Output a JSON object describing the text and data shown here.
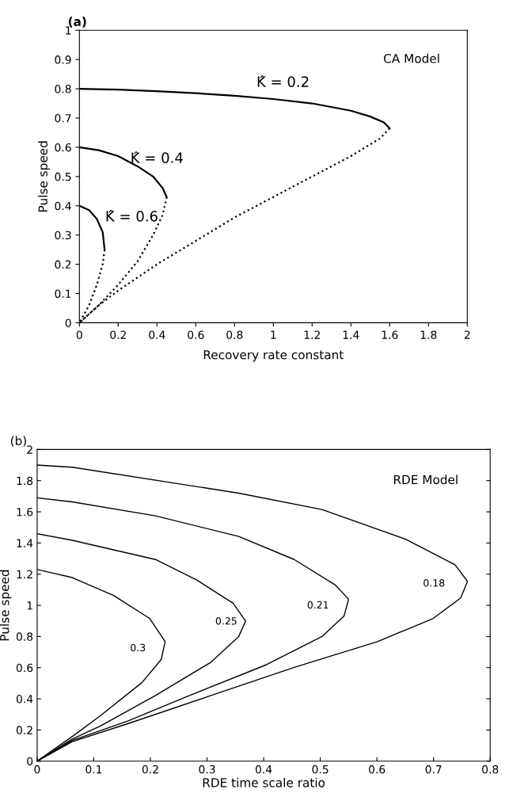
{
  "chart_data": [
    {
      "type": "line",
      "title": "(a)",
      "xlabel": "Recovery rate constant",
      "ylabel": "Pulse speed",
      "xlim": [
        0,
        2
      ],
      "ylim": [
        0,
        1
      ],
      "xticks": [
        0,
        0.2,
        0.4,
        0.6,
        0.8,
        1,
        1.2,
        1.4,
        1.6,
        1.8,
        2
      ],
      "yticks": [
        0,
        0.1,
        0.2,
        0.3,
        0.4,
        0.5,
        0.6,
        0.7,
        0.8,
        0.9,
        1
      ],
      "grid": false,
      "series": [
        {
          "color": "#000000",
          "line_style": "solid",
          "x": [
            0,
            0.2,
            0.4,
            0.6,
            0.8,
            1.0,
            1.2,
            1.4,
            1.5,
            1.57,
            1.6
          ],
          "values": [
            0.8,
            0.797,
            0.792,
            0.785,
            0.776,
            0.765,
            0.75,
            0.725,
            0.705,
            0.685,
            0.665
          ]
        },
        {
          "color": "#000000",
          "line_style": "dotted",
          "x": [
            1.6,
            1.55,
            1.4,
            1.2,
            1.0,
            0.8,
            0.6,
            0.4,
            0.2,
            0.1,
            0
          ],
          "values": [
            0.665,
            0.63,
            0.57,
            0.5,
            0.43,
            0.36,
            0.28,
            0.2,
            0.11,
            0.06,
            0
          ]
        },
        {
          "color": "#000000",
          "line_style": "solid",
          "x": [
            0,
            0.1,
            0.2,
            0.3,
            0.38,
            0.43,
            0.45
          ],
          "values": [
            0.6,
            0.59,
            0.57,
            0.535,
            0.5,
            0.46,
            0.43
          ]
        },
        {
          "color": "#000000",
          "line_style": "dotted",
          "x": [
            0.45,
            0.43,
            0.38,
            0.3,
            0.2,
            0.1,
            0
          ],
          "values": [
            0.43,
            0.37,
            0.3,
            0.21,
            0.13,
            0.06,
            0
          ]
        },
        {
          "color": "#000000",
          "line_style": "solid",
          "x": [
            0,
            0.05,
            0.09,
            0.12,
            0.13
          ],
          "values": [
            0.4,
            0.385,
            0.355,
            0.31,
            0.25
          ]
        },
        {
          "color": "#000000",
          "line_style": "dotted",
          "x": [
            0.13,
            0.12,
            0.09,
            0.05,
            0
          ],
          "values": [
            0.25,
            0.2,
            0.13,
            0.06,
            0
          ]
        }
      ],
      "annotations": [
        "CA Model",
        "K̂ = 0.2",
        "K̂ = 0.4",
        "K̂ = 0.6"
      ]
    },
    {
      "type": "line",
      "title": "(b)",
      "xlabel": "RDE time scale ratio",
      "ylabel": "Pulse speed",
      "xlim": [
        0,
        0.8
      ],
      "ylim": [
        0,
        2
      ],
      "xticks": [
        0,
        0.1,
        0.2,
        0.3,
        0.4,
        0.5,
        0.6,
        0.7,
        0.8
      ],
      "yticks": [
        0,
        0.2,
        0.4,
        0.6,
        0.8,
        1,
        1.2,
        1.4,
        1.6,
        1.8,
        2
      ],
      "grid": false,
      "series": [
        {
          "color": "#000000",
          "line_style": "solid",
          "x": [
            0,
            0.062,
            0.356,
            0.503,
            0.65,
            0.738,
            0.76,
            0.748,
            0.699,
            0.601,
            0.454,
            0.307,
            0.16,
            0.062,
            0
          ],
          "values": [
            1.9,
            1.886,
            1.72,
            1.615,
            1.425,
            1.26,
            1.154,
            1.047,
            0.915,
            0.767,
            0.602,
            0.421,
            0.24,
            0.125,
            0
          ]
        },
        {
          "color": "#000000",
          "line_style": "solid",
          "x": [
            0,
            0.062,
            0.209,
            0.356,
            0.454,
            0.527,
            0.55,
            0.542,
            0.503,
            0.405,
            0.258,
            0.16,
            0.062,
            0
          ],
          "values": [
            1.69,
            1.664,
            1.574,
            1.442,
            1.294,
            1.129,
            1.039,
            0.932,
            0.8,
            0.619,
            0.405,
            0.257,
            0.133,
            0
          ]
        },
        {
          "color": "#000000",
          "line_style": "solid",
          "x": [
            0,
            0.062,
            0.209,
            0.282,
            0.346,
            0.368,
            0.356,
            0.307,
            0.209,
            0.111,
            0.062,
            0
          ],
          "values": [
            1.46,
            1.417,
            1.294,
            1.162,
            1.014,
            0.899,
            0.8,
            0.635,
            0.421,
            0.224,
            0.142,
            0
          ]
        },
        {
          "color": "#000000",
          "line_style": "solid",
          "x": [
            0,
            0.062,
            0.135,
            0.199,
            0.226,
            0.219,
            0.185,
            0.111,
            0.062,
            0
          ],
          "values": [
            1.23,
            1.178,
            1.063,
            0.915,
            0.767,
            0.652,
            0.504,
            0.29,
            0.158,
            0
          ]
        }
      ],
      "annotations": [
        "RDE Model",
        "0.18",
        "0.21",
        "0.25",
        "0.3"
      ]
    }
  ]
}
